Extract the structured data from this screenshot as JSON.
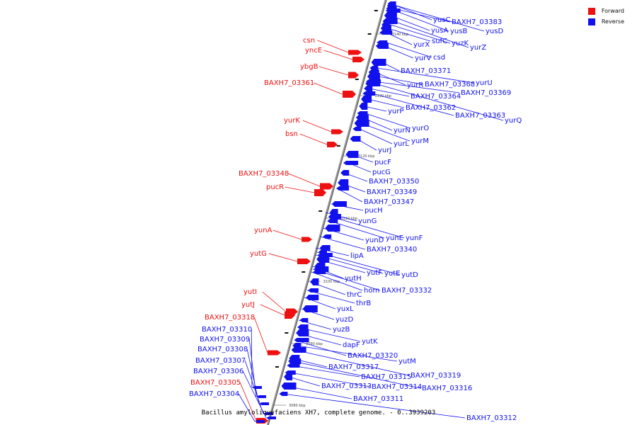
{
  "legend": {
    "items": [
      {
        "label": "Forward",
        "color": "#ee1111"
      },
      {
        "label": "Reverse",
        "color": "#1111ee"
      }
    ]
  },
  "caption": "Bacillus amyloliquefaciens XH7, complete genome. - 0..3939203",
  "axis": {
    "ticks": [
      {
        "label": "3080 kbp",
        "value": 3080
      },
      {
        "label": "3090 kbp",
        "value": 3090
      },
      {
        "label": "3100 kbp",
        "value": 3100
      },
      {
        "label": "3110 kbp",
        "value": 3110
      },
      {
        "label": "3120 kbp",
        "value": 3120
      },
      {
        "label": "3130 kbp",
        "value": 3130
      },
      {
        "label": "3140 kbp",
        "value": 3140
      }
    ]
  },
  "colors": {
    "forward": "#ee1111",
    "reverse": "#1111ee",
    "backbone": "#999999"
  },
  "forward_genes": [
    "csn",
    "yncE",
    "ybgB",
    "BAXH7_03361",
    "yurK",
    "bsn",
    "BAXH7_03348",
    "pucR",
    "yunA",
    "yutG",
    "yutI",
    "yutJ",
    "BAXH7_03318",
    "BAXH7_03305"
  ],
  "reverse_left_genes": [
    "BAXH7_03310",
    "BAXH7_03309",
    "BAXH7_03308",
    "BAXH7_03307",
    "BAXH7_03306",
    "BAXH7_03304"
  ],
  "reverse_genes": [
    "yusC",
    "BAXH7_03383",
    "yusA",
    "yusB",
    "yusD",
    "sufC",
    "yurX",
    "yurZ",
    "yuzK",
    "csd",
    "yurV",
    "BAXH7_03371",
    "yurU",
    "yurR",
    "BAXH7_03368",
    "BAXH7_03369",
    "BAXH7_03364",
    "BAXH7_03362",
    "BAXH7_03363",
    "yurQ",
    "yurP",
    "yurO",
    "yurN",
    "yurM",
    "yurL",
    "yurJ",
    "pucF",
    "pucG",
    "BAXH7_03350",
    "BAXH7_03349",
    "BAXH7_03347",
    "pucH",
    "yunG",
    "yunE",
    "yunF",
    "yunD",
    "BAXH7_03340",
    "lipA",
    "yutF",
    "yutE",
    "yutD",
    "yutH",
    "hom",
    "BAXH7_03332",
    "thrC",
    "thrB",
    "yuxL",
    "yuzD",
    "yuzB",
    "yutK",
    "dapF",
    "BAXH7_03320",
    "yutM",
    "BAXH7_03317",
    "BAXH7_03315",
    "BAXH7_03319",
    "BAXH7_03313",
    "BAXH7_03314",
    "BAXH7_03316",
    "BAXH7_03311",
    "BAXH7_03312"
  ]
}
